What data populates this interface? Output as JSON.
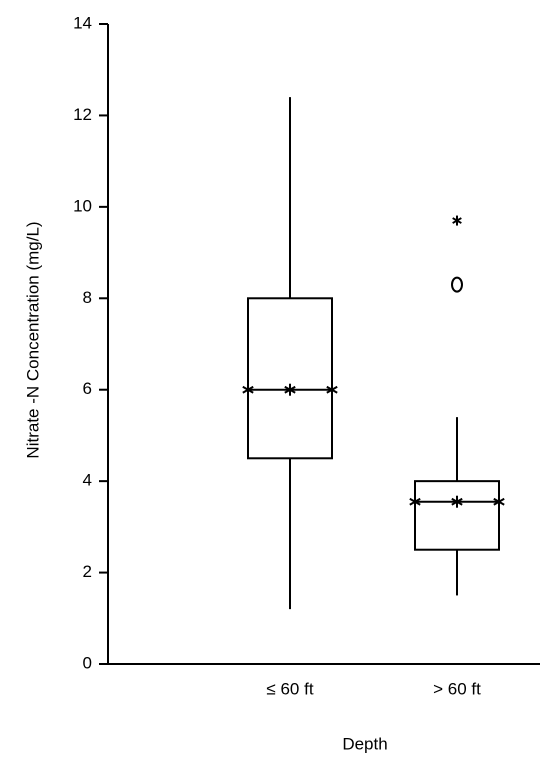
{
  "chart_data": {
    "type": "box",
    "xlabel": "Depth",
    "ylabel": "Nitrate -N Concentration (mg/L)",
    "categories": [
      "≤ 60 ft",
      "> 60 ft"
    ],
    "min": [
      1.2,
      1.5
    ],
    "q1": [
      4.5,
      2.5
    ],
    "median": [
      6.0,
      3.55
    ],
    "q3": [
      8.0,
      4.0
    ],
    "max": [
      12.4,
      5.4
    ],
    "outliers": [
      [],
      [
        8.3
      ]
    ],
    "extreme_outliers": [
      [],
      [
        9.7
      ]
    ],
    "color": "#000000",
    "ylim": [
      0,
      14
    ],
    "yticks": [
      0,
      2,
      4,
      6,
      8,
      10,
      12,
      14
    ]
  }
}
